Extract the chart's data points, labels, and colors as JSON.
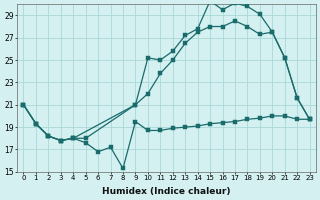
{
  "xlabel": "Humidex (Indice chaleur)",
  "bg_color": "#d4f0f0",
  "grid_color": "#a8d8d8",
  "line_color": "#1a6b6b",
  "xlim": [
    -0.5,
    23.5
  ],
  "ylim": [
    15,
    30
  ],
  "xticks": [
    0,
    1,
    2,
    3,
    4,
    5,
    6,
    7,
    8,
    9,
    10,
    11,
    12,
    13,
    14,
    15,
    16,
    17,
    18,
    19,
    20,
    21,
    22,
    23
  ],
  "yticks": [
    15,
    17,
    19,
    21,
    23,
    25,
    27,
    29
  ],
  "series1_x": [
    0,
    1,
    2,
    3,
    4,
    5,
    6,
    7,
    8,
    9,
    10,
    11,
    12,
    13,
    14,
    15,
    16,
    17,
    18,
    19,
    20,
    21,
    22,
    23
  ],
  "series1_y": [
    21.0,
    19.3,
    18.2,
    17.8,
    18.0,
    17.6,
    16.8,
    17.2,
    15.3,
    19.5,
    18.7,
    18.7,
    18.9,
    19.0,
    19.1,
    19.3,
    19.4,
    19.5,
    19.7,
    19.8,
    20.0,
    20.0,
    19.7,
    19.7
  ],
  "series2_x": [
    0,
    1,
    2,
    3,
    4,
    5,
    9,
    10,
    11,
    12,
    13,
    14,
    15,
    16,
    17,
    18,
    19,
    20,
    21,
    22,
    23
  ],
  "series2_y": [
    21.0,
    19.3,
    18.2,
    17.8,
    18.0,
    18.0,
    21.0,
    25.2,
    25.0,
    25.8,
    27.2,
    27.8,
    30.3,
    29.5,
    30.1,
    29.8,
    29.1,
    27.5,
    25.2,
    21.6,
    19.7
  ],
  "series3_x": [
    0,
    1,
    2,
    3,
    4,
    9,
    10,
    11,
    12,
    13,
    14,
    15,
    16,
    17,
    18,
    19,
    20,
    21,
    22,
    23
  ],
  "series3_y": [
    21.0,
    19.3,
    18.2,
    17.8,
    18.0,
    21.0,
    22.0,
    23.8,
    25.0,
    26.5,
    27.5,
    28.0,
    28.0,
    28.5,
    28.0,
    27.3,
    27.5,
    25.2,
    21.6,
    19.7
  ]
}
